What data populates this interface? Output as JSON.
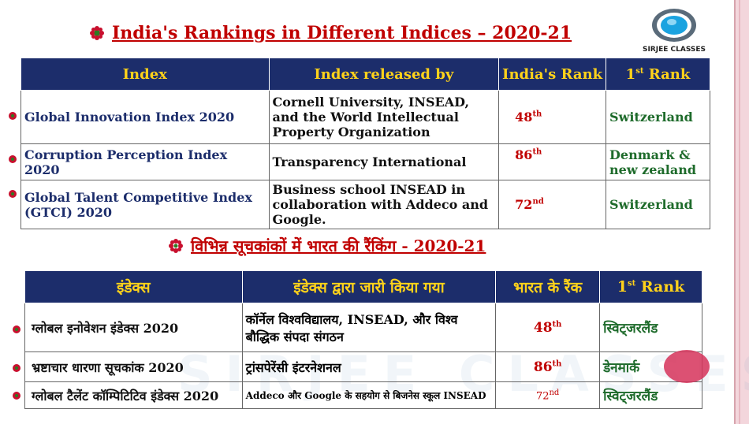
{
  "title_en": "India's Rankings in Different Indices – 2020-21",
  "title_hi": "विभिन्न सूचकांकों में भारत की रैंकिंग - 2020-21",
  "logo_text": "SIRJEE CLASSES",
  "watermark": "SIRJEE CLASSES",
  "table_en": {
    "headers": [
      "Index",
      "Index released by",
      "India's Rank",
      "1st Rank"
    ],
    "rows": [
      {
        "index": "Global Innovation Index 2020",
        "by": "Cornell University, INSEAD, and the World Intellectual Property Organization",
        "rank": "48",
        "rank_sup": "th",
        "first": "Switzerland"
      },
      {
        "index": "Corruption Perception Index 2020",
        "by": "Transparency International",
        "rank": "86",
        "rank_sup": "th",
        "first": "Denmark & new zealand"
      },
      {
        "index": "Global Talent Competitive Index (GTCI) 2020",
        "by": "Business school INSEAD in collaboration with Addeco and Google.",
        "rank": "72",
        "rank_sup": "nd",
        "first": "Switzerland"
      }
    ]
  },
  "table_hi": {
    "headers": [
      "इंडेक्स",
      "इंडेक्स द्वारा जारी किया गया",
      "भारत के रैंक",
      "1st Rank"
    ],
    "rows": [
      {
        "index": "ग्लोबल इनोवेशन इंडेक्स 2020",
        "by": "कॉर्नेल विश्वविद्यालय, INSEAD, और विश्व बौद्धिक संपदा संगठन",
        "rank": "48",
        "rank_sup": "th",
        "first": "स्विट्जरलैंड"
      },
      {
        "index": "भ्रष्टाचार धारणा सूचकांक 2020",
        "by": "ट्रांसपेरेंसी इंटरनेशनल",
        "rank": "86",
        "rank_sup": "th",
        "first": "डेनमार्क"
      },
      {
        "index": "ग्लोबल टैलेंट कॉम्पिटिटिव इंडेक्स 2020",
        "by": "Addeco और Google के सहयोग से बिजनेस स्कूल INSEAD",
        "rank": "72",
        "rank_sup": "nd",
        "first": "स्विट्जरलैंड"
      }
    ]
  },
  "colors": {
    "header_bg": "#1c2d6b",
    "header_text": "#ffd21a",
    "title": "#c00000",
    "first_rank": "#1e6b2b"
  }
}
